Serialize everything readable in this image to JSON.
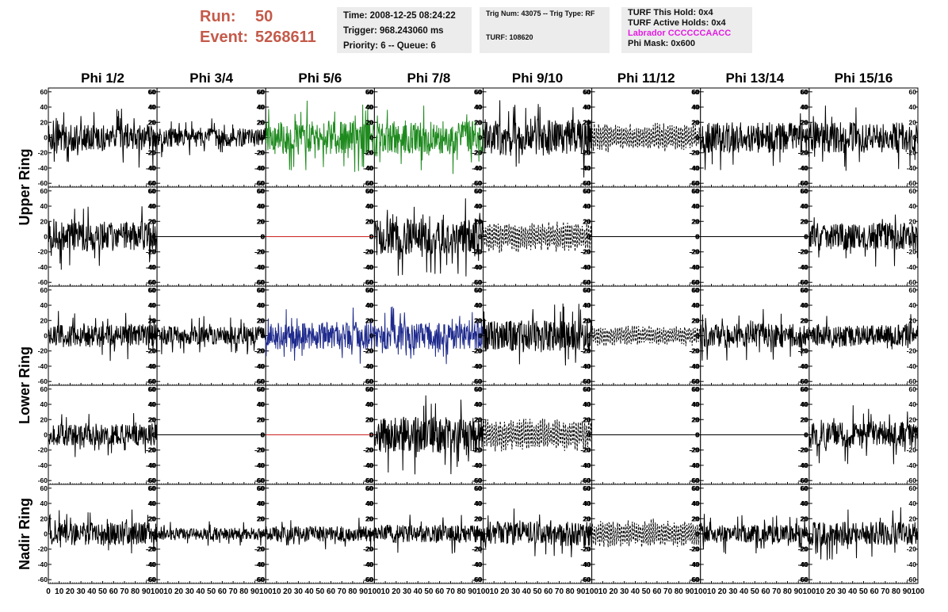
{
  "header": {
    "run_label": "Run:",
    "run_value": "50",
    "event_label": "Event:",
    "event_value": "5268611"
  },
  "info": {
    "time": "Time: 2008-12-25 08:24:22",
    "trigger": "Trigger: 968.243060 ms",
    "priority": "Priority: 6 -- Queue: 6",
    "trig_num": "Trig Num: 43075 -- Trig Type: RF",
    "turf": "TURF: 108620",
    "turf_this_hold": "TURF This Hold: 0x4",
    "turf_active_holds": "TURF Active Holds: 0x4",
    "labrador": "Labrador CCCCCCAACC",
    "phi_mask": "Phi Mask: 0x600"
  },
  "colors": {
    "header_red": "#c45a4a",
    "magenta": "#e21ce2",
    "trace_black": "#000000",
    "trace_green": "#1e8a1e",
    "trace_blue": "#1e2a8c",
    "trace_red": "#cc2222"
  },
  "chart_data": {
    "type": "line",
    "columns": [
      "Phi 1/2",
      "Phi 3/4",
      "Phi 5/6",
      "Phi 7/8",
      "Phi 9/10",
      "Phi 11/12",
      "Phi 13/14",
      "Phi 15/16"
    ],
    "rows": [
      "Upper Ring",
      "Upper Ring",
      "Lower Ring",
      "Lower Ring",
      "Nadir Ring"
    ],
    "row_labels": [
      "Upper Ring",
      "Lower Ring",
      "Nadir Ring"
    ],
    "xlim": [
      0,
      100
    ],
    "ylim": [
      -65,
      65
    ],
    "x_ticks": [
      "0",
      "10",
      "20",
      "30",
      "40",
      "50",
      "60",
      "70",
      "80",
      "90",
      "100"
    ],
    "x_tick_labels_shown": [
      "0",
      "10",
      "20",
      "30",
      "40",
      "50",
      "60",
      "70",
      "80",
      "90",
      "100"
    ],
    "y_ticks": [
      "-60",
      "-40",
      "-20",
      "0",
      "20",
      "40",
      "60"
    ],
    "traces": [
      [
        {
          "s": "noise",
          "a": 18,
          "c": "black"
        },
        {
          "s": "noise",
          "a": 12,
          "c": "black"
        },
        {
          "s": "noise",
          "a": 22,
          "c": "green"
        },
        {
          "s": "noise",
          "a": 22,
          "c": "green"
        },
        {
          "s": "noise",
          "a": 24,
          "c": "black"
        },
        {
          "s": "dashed",
          "a": 20,
          "c": "black"
        },
        {
          "s": "noise",
          "a": 20,
          "c": "black"
        },
        {
          "s": "noise",
          "a": 20,
          "c": "black"
        }
      ],
      [
        {
          "s": "noise",
          "a": 20,
          "c": "black"
        },
        {
          "s": "flat",
          "a": 0,
          "c": "black"
        },
        {
          "s": "flat",
          "a": 0,
          "c": "red"
        },
        {
          "s": "noise",
          "a": 24,
          "c": "black"
        },
        {
          "s": "dashed",
          "a": 22,
          "c": "black"
        },
        {
          "s": "flat",
          "a": 0,
          "c": "black"
        },
        {
          "s": "flat",
          "a": 0,
          "c": "black"
        },
        {
          "s": "noise",
          "a": 18,
          "c": "black"
        }
      ],
      [
        {
          "s": "noise",
          "a": 15,
          "c": "black"
        },
        {
          "s": "noise",
          "a": 12,
          "c": "black"
        },
        {
          "s": "noise",
          "a": 18,
          "c": "blue"
        },
        {
          "s": "noise",
          "a": 18,
          "c": "blue"
        },
        {
          "s": "noise",
          "a": 20,
          "c": "black"
        },
        {
          "s": "dashed",
          "a": 14,
          "c": "black"
        },
        {
          "s": "noise",
          "a": 16,
          "c": "black"
        },
        {
          "s": "noise",
          "a": 14,
          "c": "black"
        }
      ],
      [
        {
          "s": "noise",
          "a": 14,
          "c": "black"
        },
        {
          "s": "flat",
          "a": 0,
          "c": "black"
        },
        {
          "s": "flat",
          "a": 0,
          "c": "red"
        },
        {
          "s": "noise",
          "a": 24,
          "c": "black"
        },
        {
          "s": "dashed",
          "a": 22,
          "c": "black"
        },
        {
          "s": "flat",
          "a": 0,
          "c": "black"
        },
        {
          "s": "flat",
          "a": 0,
          "c": "black"
        },
        {
          "s": "noise",
          "a": 18,
          "c": "black"
        }
      ],
      [
        {
          "s": "noise",
          "a": 15,
          "c": "black"
        },
        {
          "s": "noise",
          "a": 8,
          "c": "black"
        },
        {
          "s": "noise",
          "a": 10,
          "c": "black"
        },
        {
          "s": "noise",
          "a": 12,
          "c": "black"
        },
        {
          "s": "noise",
          "a": 16,
          "c": "black"
        },
        {
          "s": "dashed",
          "a": 20,
          "c": "black"
        },
        {
          "s": "noise",
          "a": 12,
          "c": "black"
        },
        {
          "s": "noise",
          "a": 16,
          "c": "black"
        }
      ]
    ]
  }
}
